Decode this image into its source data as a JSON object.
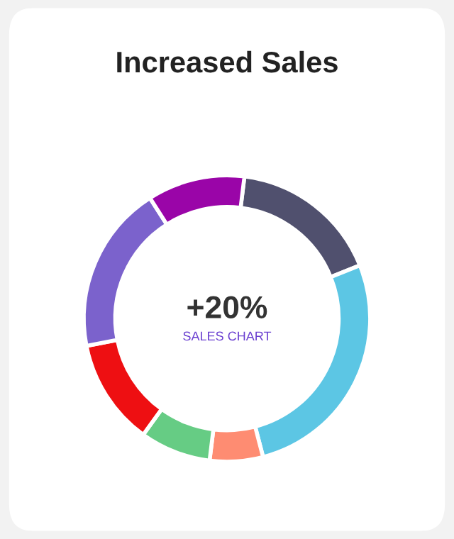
{
  "chart_data": {
    "type": "donut",
    "title": "Increased Sales",
    "categories": [
      null,
      null,
      null,
      null,
      null,
      null,
      null
    ],
    "values": [
      17,
      27,
      6,
      8,
      12,
      19,
      11
    ],
    "colors": [
      "#50506e",
      "#5cc6e4",
      "#fe8c72",
      "#66cc84",
      "#ee0f12",
      "#7b62cc",
      "#9a05a8"
    ],
    "annotations": [
      "+20%",
      "SALES CHART"
    ]
  }
}
